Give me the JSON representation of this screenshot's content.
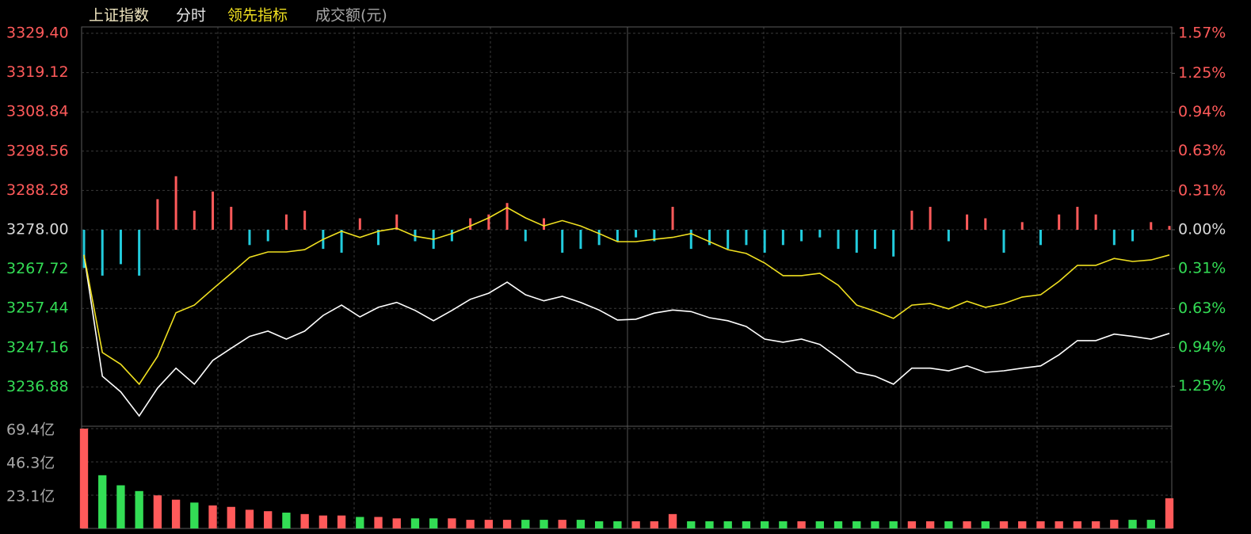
{
  "chart_data": {
    "type": "line",
    "mode_label": "分时",
    "grid": true,
    "up_color": "#ff5a5a",
    "down_color": "#33dd55",
    "flat_color": "#d8d8d8",
    "series": [
      {
        "name": "上证指数",
        "color": "#ffffff",
        "values": [
          3271.4,
          3239.7,
          3235.6,
          3229.3,
          3236.6,
          3241.8,
          3237.6,
          3243.8,
          3247.0,
          3250.1,
          3251.5,
          3249.4,
          3251.5,
          3255.6,
          3258.3,
          3255.2,
          3257.7,
          3259.0,
          3256.9,
          3254.2,
          3256.9,
          3259.8,
          3261.4,
          3264.3,
          3261.0,
          3259.4,
          3260.6,
          3259.0,
          3257.0,
          3254.4,
          3254.6,
          3256.2,
          3257.0,
          3256.6,
          3255.0,
          3254.2,
          3252.7,
          3249.4,
          3248.6,
          3249.4,
          3248.0,
          3244.5,
          3240.7,
          3239.7,
          3237.6,
          3241.8,
          3241.8,
          3241.1,
          3242.4,
          3240.7,
          3241.1,
          3241.8,
          3242.4,
          3245.3,
          3249.0,
          3249.0,
          3250.7,
          3250.1,
          3249.4,
          3250.9
        ]
      },
      {
        "name": "领先指标",
        "color": "#f0e020",
        "values": [
          3271.4,
          3245.9,
          3242.8,
          3237.6,
          3244.9,
          3256.3,
          3258.3,
          3262.5,
          3266.6,
          3270.8,
          3272.2,
          3272.2,
          3272.8,
          3275.5,
          3277.6,
          3276.0,
          3277.6,
          3278.4,
          3276.3,
          3275.5,
          3277.0,
          3279.0,
          3281.1,
          3283.8,
          3281.1,
          3279.0,
          3280.4,
          3279.0,
          3277.0,
          3274.9,
          3274.9,
          3275.5,
          3276.0,
          3277.0,
          3274.9,
          3272.8,
          3271.8,
          3269.3,
          3266.0,
          3266.0,
          3266.6,
          3263.5,
          3258.3,
          3256.7,
          3254.8,
          3258.3,
          3258.7,
          3257.3,
          3259.3,
          3257.7,
          3258.7,
          3260.4,
          3261.0,
          3264.5,
          3268.7,
          3268.7,
          3270.5,
          3269.7,
          3270.1,
          3271.4
        ]
      }
    ],
    "momentum": {
      "up_color": "#ff5a5a",
      "down_color": "#22ccdd",
      "values": [
        -10,
        -12,
        -9,
        -12,
        8,
        14,
        5,
        10,
        6,
        -4,
        -3,
        4,
        5,
        -5,
        -6,
        3,
        -4,
        4,
        -3,
        -5,
        -3,
        3,
        4,
        7,
        -3,
        3,
        -6,
        -5,
        -4,
        -3,
        -2,
        -3,
        6,
        -5,
        -4,
        -5,
        -4,
        -6,
        -4,
        -3,
        -2,
        -5,
        -6,
        -5,
        -7,
        5,
        6,
        -3,
        4,
        3,
        -6,
        2,
        -4,
        4,
        6,
        4,
        -4,
        -3,
        2,
        1
      ]
    },
    "ylim": [
      3226.6,
      3329.4
    ],
    "yticks": [
      {
        "value": 3329.4,
        "label": "3329.40"
      },
      3319.12,
      3308.84,
      3298.56,
      3288.28,
      {
        "value": 3278,
        "label": "3278.00"
      },
      3267.72,
      3257.44,
      3247.16,
      3236.88
    ],
    "y2lim": [
      -1.57,
      1.57
    ],
    "y2ticks": [
      {
        "value": 1.57,
        "label": "1.57%"
      },
      {
        "value": 1.25,
        "label": "1.25%"
      },
      {
        "value": 0.94,
        "label": "0.94%"
      },
      {
        "value": 0.63,
        "label": "0.63%"
      },
      {
        "value": 0.31,
        "label": "0.31%"
      },
      {
        "value": 0,
        "label": "0.00%"
      },
      {
        "value": -0.31,
        "label": "0.31%"
      },
      {
        "value": -0.63,
        "label": "0.63%"
      },
      {
        "value": -0.94,
        "label": "0.94%"
      },
      {
        "value": -1.25,
        "label": "1.25%"
      }
    ],
    "volume": {
      "label": "成交额(元)",
      "ylim": [
        0,
        69.4
      ],
      "yticks": [
        {
          "value": 69.4,
          "label": "69.4亿"
        },
        {
          "value": 46.3,
          "label": "46.3亿"
        },
        {
          "value": 23.1,
          "label": "23.1亿"
        }
      ],
      "values": [
        69.4,
        37,
        30,
        26,
        23,
        20,
        18,
        16,
        15,
        13,
        12,
        11,
        10,
        9,
        9,
        8,
        8,
        7,
        7,
        7,
        7,
        6,
        6,
        6,
        6,
        6,
        6,
        6,
        5,
        5,
        5,
        5,
        10,
        5,
        5,
        5,
        5,
        5,
        5,
        5,
        5,
        5,
        5,
        5,
        5,
        5,
        5,
        5,
        5,
        5,
        5,
        5,
        5,
        5,
        5,
        5,
        6,
        6,
        6,
        21
      ]
    }
  }
}
